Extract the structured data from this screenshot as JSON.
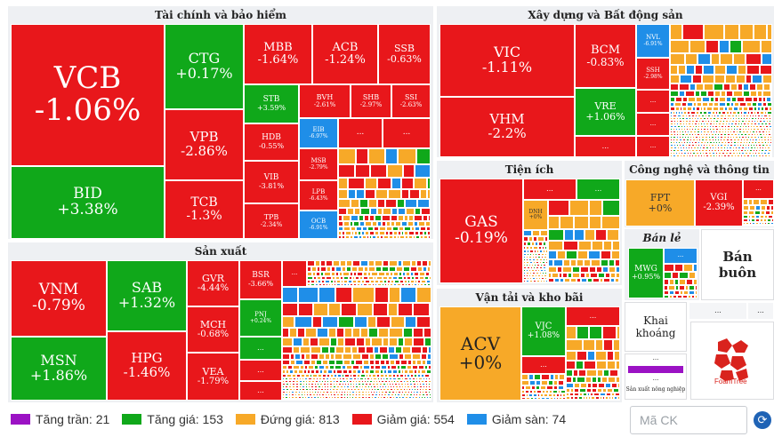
{
  "sectors": {
    "finance": "Tài chính và bảo hiểm",
    "realestate": "Xây dựng và Bất động sản",
    "utilities": "Tiện ích",
    "tech": "Công nghệ và thông tin",
    "manufacturing": "Sản xuất",
    "retail": "Bán lẻ",
    "wholesale": "Bán buôn",
    "mining": "Khai khoáng",
    "transport": "Vận tải và kho bãi",
    "agri": "Sản xuất nông nghiệp"
  },
  "tiles": {
    "VCB": {
      "sym": "VCB",
      "pct": "-1.06%"
    },
    "BID": {
      "sym": "BID",
      "pct": "+3.38%"
    },
    "CTG": {
      "sym": "CTG",
      "pct": "+0.17%"
    },
    "VPB": {
      "sym": "VPB",
      "pct": "-2.86%"
    },
    "TCB": {
      "sym": "TCB",
      "pct": "-1.3%"
    },
    "MBB": {
      "sym": "MBB",
      "pct": "-1.64%"
    },
    "ACB": {
      "sym": "ACB",
      "pct": "-1.24%"
    },
    "SSB": {
      "sym": "SSB",
      "pct": "-0.63%"
    },
    "STB": {
      "sym": "STB",
      "pct": "+3.59%"
    },
    "HDB": {
      "sym": "HDB",
      "pct": "-0.55%"
    },
    "VIB": {
      "sym": "VIB",
      "pct": "-3.81%"
    },
    "TPB": {
      "sym": "TPB",
      "pct": "-2.34%"
    },
    "BVH": {
      "sym": "BVH",
      "pct": "-2.61%"
    },
    "SHB": {
      "sym": "SHB",
      "pct": "-2.97%"
    },
    "SSI": {
      "sym": "SSI",
      "pct": "-2.63%"
    },
    "EIB": {
      "sym": "EIB",
      "pct": "-6.97%"
    },
    "MSB": {
      "sym": "MSB",
      "pct": "-2.79%"
    },
    "LPB": {
      "sym": "LPB",
      "pct": "-6.43%"
    },
    "OCB": {
      "sym": "OCB",
      "pct": "-6.91%"
    },
    "VIC": {
      "sym": "VIC",
      "pct": "-1.11%"
    },
    "VHM": {
      "sym": "VHM",
      "pct": "-2.2%"
    },
    "BCM": {
      "sym": "BCM",
      "pct": "-0.83%"
    },
    "VRE": {
      "sym": "VRE",
      "pct": "+1.06%"
    },
    "NVL": {
      "sym": "NVL",
      "pct": "-6.91%"
    },
    "SSH": {
      "sym": "SSH",
      "pct": "-2.98%"
    },
    "GAS": {
      "sym": "GAS",
      "pct": "-0.19%"
    },
    "DNH": {
      "sym": "DNH",
      "pct": "+0%"
    },
    "FPT": {
      "sym": "FPT",
      "pct": "+0%"
    },
    "VGI": {
      "sym": "VGI",
      "pct": "-2.39%"
    },
    "VNM": {
      "sym": "VNM",
      "pct": "-0.79%"
    },
    "MSN": {
      "sym": "MSN",
      "pct": "+1.86%"
    },
    "SAB": {
      "sym": "SAB",
      "pct": "+1.32%"
    },
    "HPG": {
      "sym": "HPG",
      "pct": "-1.46%"
    },
    "GVR": {
      "sym": "GVR",
      "pct": "-4.44%"
    },
    "MCH": {
      "sym": "MCH",
      "pct": "-0.68%"
    },
    "VEA": {
      "sym": "VEA",
      "pct": "-1.79%"
    },
    "BSR": {
      "sym": "BSR",
      "pct": "-3.66%"
    },
    "PNJ": {
      "sym": "PNJ",
      "pct": "+0.24%"
    },
    "MWG": {
      "sym": "MWG",
      "pct": "+0.95%"
    },
    "ACV": {
      "sym": "ACV",
      "pct": "+0%"
    },
    "VJC": {
      "sym": "VJC",
      "pct": "+1.08%"
    }
  },
  "ellipsis": "...",
  "legend": {
    "ceiling": "Tăng trần: 21",
    "up": "Tăng giá: 153",
    "flat": "Đứng giá: 813",
    "down": "Giảm giá: 554",
    "floor": "Giảm sàn: 74"
  },
  "colors": {
    "ceiling": "#9b12c4",
    "up": "#10a81a",
    "flat": "#f7a928",
    "down": "#e8171b",
    "floor": "#1f8ee8"
  },
  "search": {
    "placeholder": "Mã CK"
  },
  "logo": {
    "text": "FoamTree"
  },
  "icons": {
    "refresh": "refresh-icon"
  }
}
